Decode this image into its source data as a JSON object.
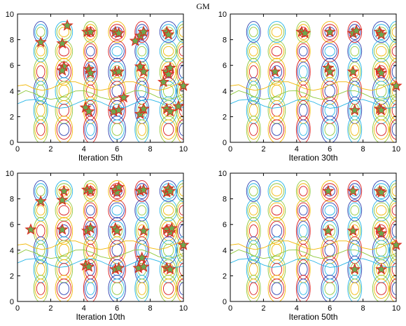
{
  "figure": {
    "title": "GM"
  },
  "chart_data": [
    {
      "type": "scatter",
      "title": "",
      "xlabel": "Iteration 5th",
      "ylabel": "",
      "xlim": [
        0,
        10
      ],
      "ylim": [
        0,
        10
      ],
      "xticks": [
        "0",
        "2",
        "4",
        "6",
        "8",
        "10"
      ],
      "yticks": [
        "0",
        "2",
        "4",
        "6",
        "8",
        "10"
      ],
      "grid": false,
      "background": "contour",
      "marker": "star",
      "marker_color": "#6aa84f",
      "marker_edge": "#e0261c",
      "points": [
        [
          3.0,
          9.1
        ],
        [
          1.4,
          7.8
        ],
        [
          2.7,
          7.7
        ],
        [
          4.2,
          8.6
        ],
        [
          4.4,
          8.6
        ],
        [
          5.9,
          8.6
        ],
        [
          6.1,
          8.5
        ],
        [
          7.4,
          8.3
        ],
        [
          7.6,
          8.6
        ],
        [
          7.1,
          7.9
        ],
        [
          9.0,
          8.6
        ],
        [
          9.1,
          8.4
        ],
        [
          2.8,
          5.9
        ],
        [
          2.7,
          5.6
        ],
        [
          4.3,
          5.7
        ],
        [
          4.4,
          5.4
        ],
        [
          5.9,
          5.5
        ],
        [
          6.1,
          5.5
        ],
        [
          7.4,
          5.9
        ],
        [
          7.6,
          5.5
        ],
        [
          8.8,
          4.7
        ],
        [
          9.0,
          5.5
        ],
        [
          9.1,
          5.3
        ],
        [
          9.2,
          5.8
        ],
        [
          10.0,
          4.4
        ],
        [
          6.4,
          3.5
        ],
        [
          4.1,
          2.7
        ],
        [
          4.3,
          2.4
        ],
        [
          5.8,
          2.4
        ],
        [
          6.1,
          2.5
        ],
        [
          7.4,
          2.2
        ],
        [
          7.6,
          2.6
        ],
        [
          9.0,
          2.6
        ],
        [
          9.2,
          2.4
        ],
        [
          9.7,
          2.8
        ]
      ]
    },
    {
      "type": "scatter",
      "title": "",
      "xlabel": "Iteration 30th",
      "ylabel": "",
      "xlim": [
        0,
        10
      ],
      "ylim": [
        0,
        10
      ],
      "xticks": [
        "0",
        "2",
        "4",
        "6",
        "8",
        "10"
      ],
      "yticks": [
        "0",
        "2",
        "4",
        "6",
        "8",
        "10"
      ],
      "grid": false,
      "background": "contour",
      "marker": "star",
      "marker_color": "#6aa84f",
      "marker_edge": "#e0261c",
      "points": [
        [
          4.3,
          8.6
        ],
        [
          4.5,
          8.5
        ],
        [
          6.0,
          8.6
        ],
        [
          7.4,
          8.5
        ],
        [
          7.6,
          8.7
        ],
        [
          9.0,
          8.6
        ],
        [
          9.1,
          8.4
        ],
        [
          2.7,
          5.5
        ],
        [
          5.9,
          5.8
        ],
        [
          6.0,
          5.5
        ],
        [
          7.4,
          5.5
        ],
        [
          9.0,
          5.6
        ],
        [
          9.1,
          5.4
        ],
        [
          10.0,
          4.4
        ],
        [
          7.5,
          2.5
        ],
        [
          9.0,
          2.6
        ],
        [
          9.1,
          2.5
        ]
      ]
    },
    {
      "type": "scatter",
      "title": "",
      "xlabel": "Iteration 10th",
      "ylabel": "",
      "xlim": [
        0,
        10
      ],
      "ylim": [
        0,
        10
      ],
      "xticks": [
        "0",
        "2",
        "4",
        "6",
        "8",
        "10"
      ],
      "yticks": [
        "0",
        "2",
        "4",
        "6",
        "8",
        "10"
      ],
      "grid": false,
      "background": "contour",
      "marker": "star",
      "marker_color": "#6aa84f",
      "marker_edge": "#e0261c",
      "points": [
        [
          2.8,
          8.6
        ],
        [
          4.2,
          8.7
        ],
        [
          4.4,
          8.6
        ],
        [
          5.9,
          8.7
        ],
        [
          6.0,
          8.5
        ],
        [
          6.1,
          8.9
        ],
        [
          7.4,
          8.6
        ],
        [
          7.6,
          8.7
        ],
        [
          9.0,
          8.5
        ],
        [
          9.1,
          8.8
        ],
        [
          9.2,
          8.6
        ],
        [
          1.4,
          7.8
        ],
        [
          2.7,
          7.9
        ],
        [
          0.8,
          5.6
        ],
        [
          2.7,
          5.6
        ],
        [
          4.2,
          5.5
        ],
        [
          4.4,
          5.7
        ],
        [
          5.9,
          5.7
        ],
        [
          6.0,
          5.5
        ],
        [
          7.6,
          5.5
        ],
        [
          9.0,
          5.6
        ],
        [
          9.2,
          5.4
        ],
        [
          9.3,
          5.7
        ],
        [
          10.0,
          4.4
        ],
        [
          7.5,
          3.4
        ],
        [
          4.1,
          2.8
        ],
        [
          4.3,
          2.7
        ],
        [
          5.9,
          2.5
        ],
        [
          6.1,
          2.6
        ],
        [
          7.3,
          2.6
        ],
        [
          7.6,
          2.7
        ],
        [
          9.0,
          2.6
        ],
        [
          9.2,
          2.5
        ]
      ]
    },
    {
      "type": "scatter",
      "title": "",
      "xlabel": "Iteration 50th",
      "ylabel": "",
      "xlim": [
        0,
        10
      ],
      "ylim": [
        0,
        10
      ],
      "xticks": [
        "0",
        "2",
        "4",
        "6",
        "8",
        "10"
      ],
      "yticks": [
        "0",
        "2",
        "4",
        "6",
        "8",
        "10"
      ],
      "grid": false,
      "background": "contour",
      "marker": "star",
      "marker_color": "#6aa84f",
      "marker_edge": "#e0261c",
      "points": [
        [
          5.9,
          8.6
        ],
        [
          7.4,
          8.6
        ],
        [
          9.0,
          8.6
        ],
        [
          9.1,
          8.5
        ],
        [
          5.9,
          5.5
        ],
        [
          7.4,
          5.5
        ],
        [
          9.0,
          5.6
        ],
        [
          9.1,
          5.3
        ],
        [
          10.0,
          4.4
        ],
        [
          7.5,
          2.5
        ],
        [
          9.1,
          2.5
        ]
      ]
    }
  ]
}
